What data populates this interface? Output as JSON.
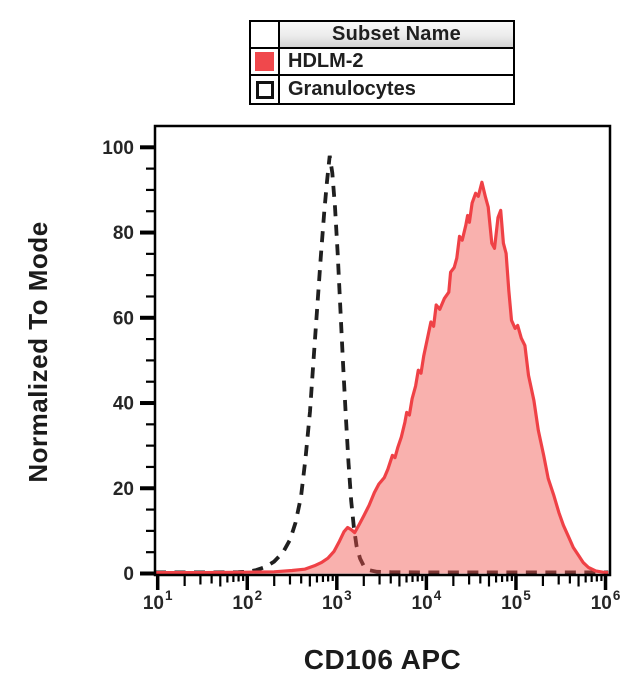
{
  "figure": {
    "x_axis_title": "CD106 APC",
    "y_axis_title": "Normalized To Mode",
    "background": "#ffffff",
    "frame_color": "#000000"
  },
  "legend": {
    "header": "Subset Name",
    "entries": [
      {
        "label": "HDLM-2",
        "swatch": "filled",
        "swatch_color": "#f0484c"
      },
      {
        "label": "Granulocytes",
        "swatch": "open",
        "swatch_border_color": "#111111",
        "swatch_fill": "#ffffff"
      }
    ]
  },
  "chart_data": {
    "type": "area",
    "subtype": "flow-cytometry-histogram-overlay",
    "title": "",
    "xlabel": "CD106 APC",
    "ylabel": "Normalized To Mode",
    "x_scale": "log10",
    "x_range_log": [
      0.97,
      6.05
    ],
    "ylim": [
      0,
      105
    ],
    "grid": false,
    "legend_position": "top-center",
    "x_major_ticks": [
      {
        "log": 1,
        "base": "10",
        "exp": "1"
      },
      {
        "log": 2,
        "base": "10",
        "exp": "2"
      },
      {
        "log": 3,
        "base": "10",
        "exp": "3"
      },
      {
        "log": 4,
        "base": "10",
        "exp": "4"
      },
      {
        "log": 5,
        "base": "10",
        "exp": "5"
      },
      {
        "log": 6,
        "base": "10",
        "exp": "6"
      }
    ],
    "y_major_ticks": [
      {
        "value": 0,
        "label": "0"
      },
      {
        "value": 20,
        "label": "20"
      },
      {
        "value": 40,
        "label": "40"
      },
      {
        "value": 60,
        "label": "60"
      },
      {
        "value": 80,
        "label": "80"
      },
      {
        "value": 100,
        "label": "100"
      }
    ],
    "y_minor_step": 5,
    "series": [
      {
        "name": "Granulocytes",
        "style": "dashed",
        "color": "#1f1f1f",
        "fill": "none",
        "peak_log10_x": 2.92,
        "peak_value": 98,
        "points": [
          [
            0.97,
            0.25
          ],
          [
            1.3,
            0.25
          ],
          [
            1.6,
            0.25
          ],
          [
            1.9,
            0.3
          ],
          [
            2.0,
            0.4
          ],
          [
            2.1,
            0.8
          ],
          [
            2.2,
            1.5
          ],
          [
            2.3,
            2.8
          ],
          [
            2.4,
            5
          ],
          [
            2.48,
            8
          ],
          [
            2.54,
            12
          ],
          [
            2.6,
            18
          ],
          [
            2.65,
            27
          ],
          [
            2.7,
            38
          ],
          [
            2.74,
            50
          ],
          [
            2.78,
            62
          ],
          [
            2.82,
            74
          ],
          [
            2.86,
            85
          ],
          [
            2.89,
            92
          ],
          [
            2.92,
            98
          ],
          [
            2.95,
            94
          ],
          [
            2.98,
            86
          ],
          [
            3.01,
            75
          ],
          [
            3.04,
            62
          ],
          [
            3.07,
            49
          ],
          [
            3.1,
            37
          ],
          [
            3.13,
            26
          ],
          [
            3.16,
            17
          ],
          [
            3.19,
            11
          ],
          [
            3.22,
            6.5
          ],
          [
            3.26,
            3.5
          ],
          [
            3.3,
            1.8
          ],
          [
            3.36,
            0.8
          ],
          [
            3.45,
            0.4
          ],
          [
            3.6,
            0.3
          ],
          [
            4.0,
            0.25
          ],
          [
            4.5,
            0.25
          ],
          [
            5.0,
            0.25
          ],
          [
            5.5,
            0.25
          ],
          [
            6.03,
            0.25
          ]
        ]
      },
      {
        "name": "HDLM-2",
        "style": "solid-filled",
        "color": "#ef4146",
        "fill": "rgba(241,82,76,0.45)",
        "peak_log10_x": 4.62,
        "peak_value": 92,
        "points": [
          [
            0.97,
            0.2
          ],
          [
            1.5,
            0.2
          ],
          [
            2.0,
            0.3
          ],
          [
            2.3,
            0.4
          ],
          [
            2.5,
            0.7
          ],
          [
            2.64,
            1.0
          ],
          [
            2.75,
            1.8
          ],
          [
            2.83,
            2.6
          ],
          [
            2.9,
            3.6
          ],
          [
            2.97,
            5.2
          ],
          [
            3.03,
            7.6
          ],
          [
            3.08,
            9.8
          ],
          [
            3.12,
            10.8
          ],
          [
            3.16,
            10.3
          ],
          [
            3.2,
            9.6
          ],
          [
            3.25,
            11.5
          ],
          [
            3.3,
            13.5
          ],
          [
            3.36,
            16
          ],
          [
            3.42,
            19
          ],
          [
            3.47,
            21
          ],
          [
            3.53,
            22.5
          ],
          [
            3.57,
            24.5
          ],
          [
            3.62,
            27.7
          ],
          [
            3.65,
            27.2
          ],
          [
            3.68,
            29.5
          ],
          [
            3.72,
            32
          ],
          [
            3.76,
            35.5
          ],
          [
            3.78,
            37.8
          ],
          [
            3.81,
            37.2
          ],
          [
            3.84,
            41
          ],
          [
            3.88,
            44
          ],
          [
            3.91,
            47.7
          ],
          [
            3.94,
            47
          ],
          [
            3.97,
            51
          ],
          [
            4.01,
            55
          ],
          [
            4.05,
            59
          ],
          [
            4.08,
            58
          ],
          [
            4.11,
            63
          ],
          [
            4.15,
            62
          ],
          [
            4.2,
            64.5
          ],
          [
            4.25,
            66
          ],
          [
            4.27,
            70.7
          ],
          [
            4.31,
            71.8
          ],
          [
            4.34,
            74
          ],
          [
            4.37,
            79.1
          ],
          [
            4.4,
            78.2
          ],
          [
            4.44,
            81.7
          ],
          [
            4.46,
            84
          ],
          [
            4.48,
            82.4
          ],
          [
            4.51,
            86.9
          ],
          [
            4.55,
            89.2
          ],
          [
            4.58,
            88.5
          ],
          [
            4.62,
            91.8
          ],
          [
            4.66,
            88.3
          ],
          [
            4.69,
            86
          ],
          [
            4.73,
            77.5
          ],
          [
            4.76,
            76.3
          ],
          [
            4.8,
            83.5
          ],
          [
            4.83,
            85.2
          ],
          [
            4.86,
            77.5
          ],
          [
            4.89,
            75.1
          ],
          [
            4.92,
            66.4
          ],
          [
            4.95,
            59.4
          ],
          [
            4.99,
            57.5
          ],
          [
            5.02,
            58.2
          ],
          [
            5.06,
            55.2
          ],
          [
            5.1,
            53.5
          ],
          [
            5.14,
            46.5
          ],
          [
            5.2,
            40.6
          ],
          [
            5.25,
            33.6
          ],
          [
            5.31,
            27.7
          ],
          [
            5.36,
            22.3
          ],
          [
            5.42,
            18.5
          ],
          [
            5.48,
            14.3
          ],
          [
            5.53,
            11.3
          ],
          [
            5.59,
            8.5
          ],
          [
            5.64,
            6.1
          ],
          [
            5.7,
            4.2
          ],
          [
            5.75,
            2.6
          ],
          [
            5.81,
            1.4
          ],
          [
            5.89,
            0.6
          ],
          [
            5.97,
            0.3
          ],
          [
            6.03,
            0.2
          ]
        ]
      }
    ]
  }
}
